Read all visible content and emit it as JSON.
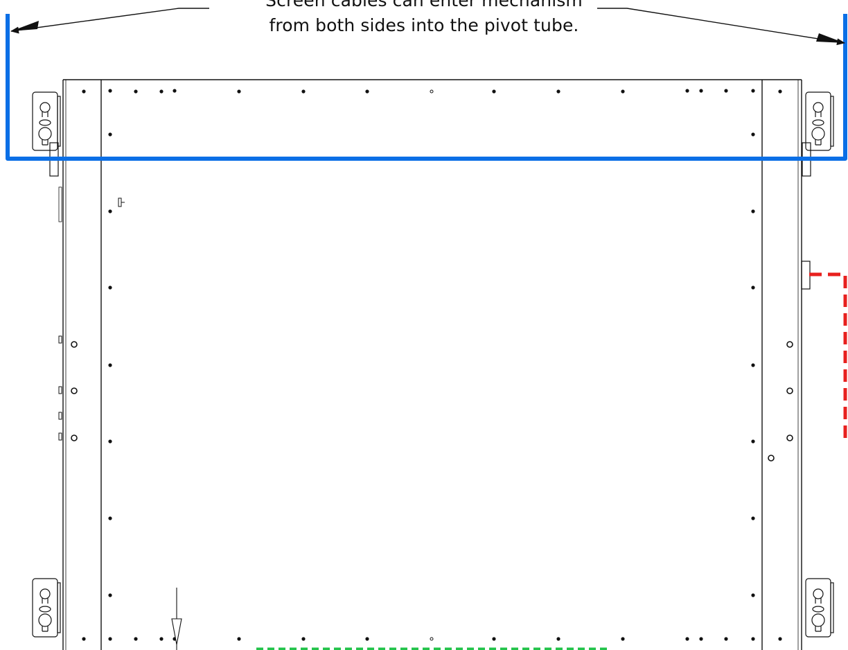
{
  "annotation": {
    "line1": "Screen cables can enter mechanism",
    "line2": "from both sides into the pivot tube."
  },
  "colors": {
    "cable_path": "#0b6fe6",
    "red_path": "#e8201e",
    "green_path": "#22c34a",
    "outline": "#111111"
  },
  "icons": {
    "bracket": "keyhole-bracket-icon",
    "fastener": "screw-hole-icon",
    "arrow": "arrow-icon"
  }
}
